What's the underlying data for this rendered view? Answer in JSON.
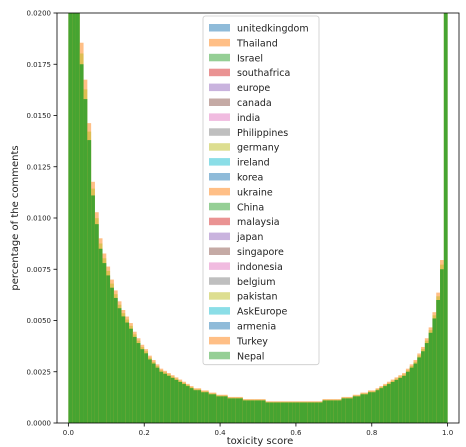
{
  "chart_data": {
    "type": "bar",
    "subtype": "overlaid-histogram",
    "xlabel": "toxicity score",
    "ylabel": "percentage of the comments",
    "xlim": [
      -0.03,
      1.03
    ],
    "ylim": [
      0,
      0.02
    ],
    "x_ticks": [
      "0.0",
      "0.2",
      "0.4",
      "0.6",
      "0.8",
      "1.0"
    ],
    "y_ticks": [
      "0.0000",
      "0.0025",
      "0.0050",
      "0.0075",
      "0.0100",
      "0.0125",
      "0.0150",
      "0.0175",
      "0.0200"
    ],
    "bin_width": 0.01,
    "legend_position": "top-center",
    "series": [
      {
        "name": "unitedkingdom",
        "color": "#1f77b4"
      },
      {
        "name": "Thailand",
        "color": "#ff7f0e"
      },
      {
        "name": "Israel",
        "color": "#2ca02c"
      },
      {
        "name": "southafrica",
        "color": "#d62728"
      },
      {
        "name": "europe",
        "color": "#9467bd"
      },
      {
        "name": "canada",
        "color": "#8c564b"
      },
      {
        "name": "india",
        "color": "#e377c2"
      },
      {
        "name": "Philippines",
        "color": "#7f7f7f"
      },
      {
        "name": "germany",
        "color": "#bcbd22"
      },
      {
        "name": "ireland",
        "color": "#17becf"
      },
      {
        "name": "korea",
        "color": "#1f77b4"
      },
      {
        "name": "ukraine",
        "color": "#ff7f0e"
      },
      {
        "name": "China",
        "color": "#2ca02c"
      },
      {
        "name": "malaysia",
        "color": "#d62728"
      },
      {
        "name": "japan",
        "color": "#9467bd"
      },
      {
        "name": "singapore",
        "color": "#8c564b"
      },
      {
        "name": "indonesia",
        "color": "#e377c2"
      },
      {
        "name": "belgium",
        "color": "#7f7f7f"
      },
      {
        "name": "pakistan",
        "color": "#bcbd22"
      },
      {
        "name": "AskEurope",
        "color": "#17becf"
      },
      {
        "name": "armenia",
        "color": "#1f77b4"
      },
      {
        "name": "Turkey",
        "color": "#ff7f0e"
      },
      {
        "name": "Nepal",
        "color": "#2ca02c"
      }
    ],
    "bins": {
      "start": 0.0,
      "values": [
        0.02,
        0.02,
        0.02,
        0.0175,
        0.0158,
        0.0138,
        0.0111,
        0.0097,
        0.0085,
        0.0078,
        0.0072,
        0.0066,
        0.0061,
        0.0056,
        0.0052,
        0.0049,
        0.0046,
        0.0042,
        0.0039,
        0.0036,
        0.0034,
        0.0031,
        0.0029,
        0.0027,
        0.0025,
        0.0024,
        0.0023,
        0.0022,
        0.0021,
        0.002,
        0.0019,
        0.0018,
        0.0017,
        0.0016,
        0.0016,
        0.0015,
        0.0015,
        0.0014,
        0.0014,
        0.0013,
        0.0013,
        0.0013,
        0.0012,
        0.0012,
        0.0012,
        0.0012,
        0.0011,
        0.0011,
        0.0011,
        0.0011,
        0.0011,
        0.0011,
        0.001,
        0.001,
        0.001,
        0.001,
        0.001,
        0.001,
        0.001,
        0.001,
        0.001,
        0.001,
        0.001,
        0.001,
        0.001,
        0.001,
        0.001,
        0.0011,
        0.0011,
        0.0011,
        0.0011,
        0.0011,
        0.0012,
        0.0012,
        0.0012,
        0.0013,
        0.0013,
        0.0014,
        0.0014,
        0.0015,
        0.0015,
        0.0016,
        0.0017,
        0.0018,
        0.0019,
        0.002,
        0.0021,
        0.0022,
        0.0023,
        0.0025,
        0.0027,
        0.0029,
        0.0032,
        0.0035,
        0.0039,
        0.0044,
        0.0051,
        0.006,
        0.0075,
        0.02
      ]
    }
  }
}
